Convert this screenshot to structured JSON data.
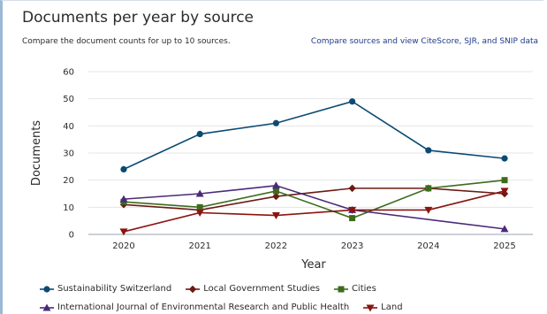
{
  "header": {
    "title": "Documents per year by source",
    "subtitle": "Compare the document counts for up to 10 sources.",
    "link_label": "Compare sources and view CiteScore, SJR, and SNIP data"
  },
  "chart_data": {
    "type": "line",
    "xlabel": "Year",
    "ylabel": "Documents",
    "ylim": [
      0,
      60
    ],
    "yticks": [
      "0",
      "10",
      "20",
      "30",
      "40",
      "50",
      "60"
    ],
    "x": [
      "2020",
      "2021",
      "2022",
      "2023",
      "2024",
      "2025"
    ],
    "grid": "horizontal",
    "legend_position": "bottom",
    "series": [
      {
        "name": "Sustainability Switzerland",
        "color": "#0b4a72",
        "marker": "circle",
        "x": [
          "2020",
          "2021",
          "2022",
          "2023",
          "2024",
          "2025"
        ],
        "values": [
          24,
          37,
          41,
          49,
          31,
          28
        ]
      },
      {
        "name": "Local Government Studies",
        "color": "#6b1a12",
        "marker": "diamond",
        "x": [
          "2020",
          "2021",
          "2022",
          "2023",
          "2024",
          "2025"
        ],
        "values": [
          11,
          9,
          14,
          17,
          17,
          15
        ]
      },
      {
        "name": "Cities",
        "color": "#3d6b1c",
        "marker": "square",
        "x": [
          "2020",
          "2021",
          "2022",
          "2023",
          "2024",
          "2025"
        ],
        "values": [
          12,
          10,
          16,
          6,
          17,
          20
        ]
      },
      {
        "name": "International Journal of Environmental Research and Public Health",
        "color": "#4a2a7a",
        "marker": "triangle-up",
        "x": [
          "2020",
          "2021",
          "2022",
          "2023",
          "2025"
        ],
        "values": [
          13,
          15,
          18,
          9,
          2
        ]
      },
      {
        "name": "Land",
        "color": "#8a1410",
        "marker": "triangle-down",
        "x": [
          "2020",
          "2021",
          "2022",
          "2023",
          "2024",
          "2025"
        ],
        "values": [
          1,
          8,
          7,
          9,
          9,
          16
        ]
      }
    ]
  }
}
